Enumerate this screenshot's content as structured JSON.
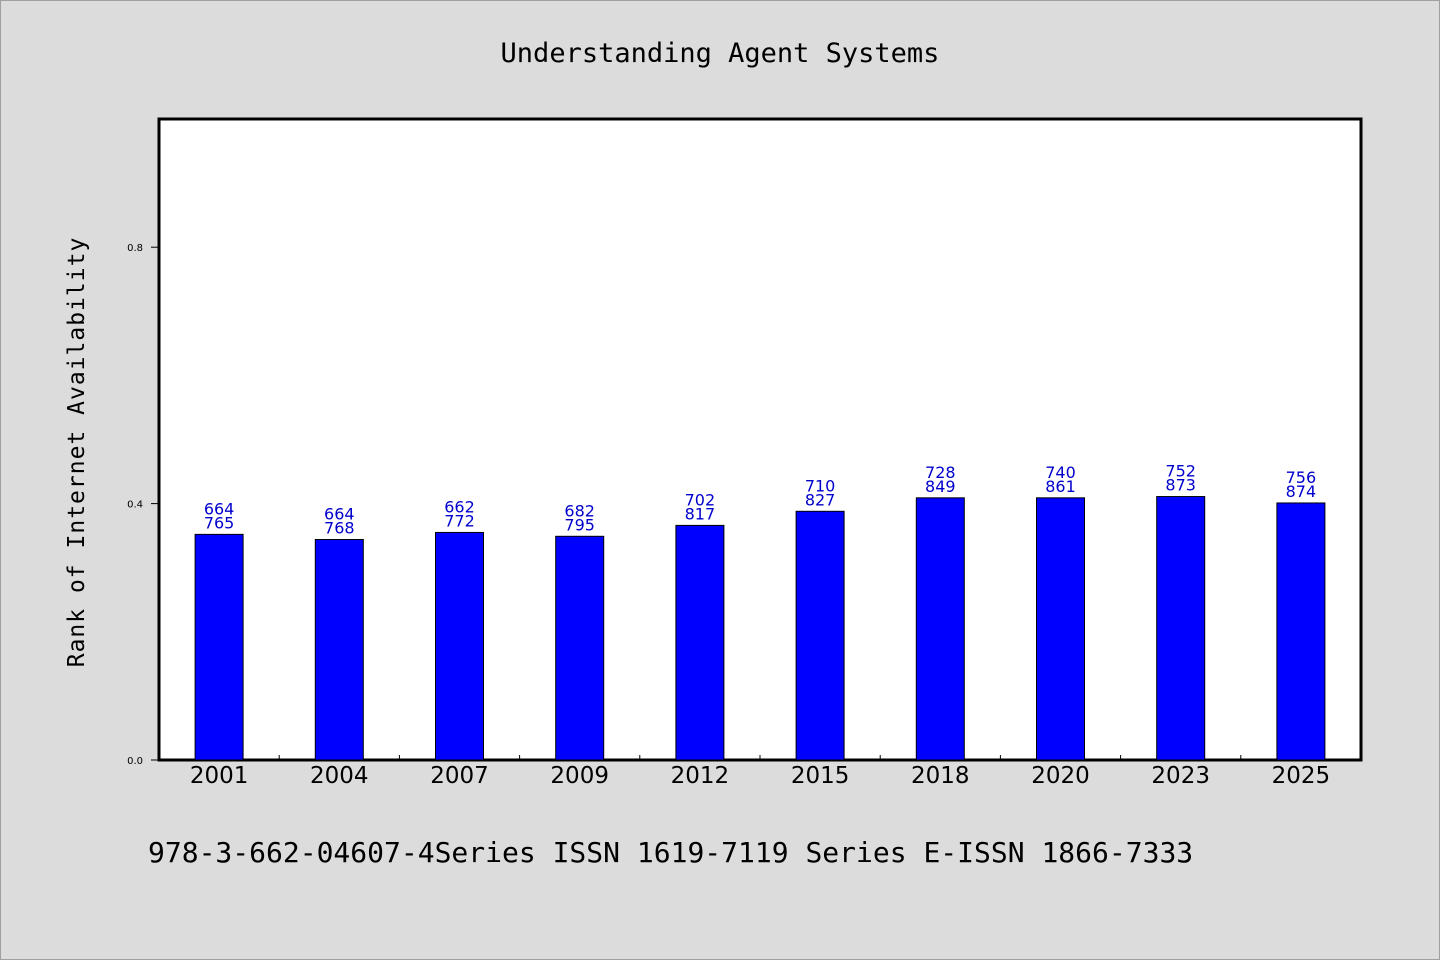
{
  "chart_data": {
    "type": "bar",
    "title": "Understanding Agent Systems",
    "xlabel": "",
    "ylabel": "Rank of Internet Availability",
    "categories": [
      "2001",
      "2004",
      "2007",
      "2009",
      "2012",
      "2015",
      "2018",
      "2020",
      "2023",
      "2025"
    ],
    "values": [
      0.352,
      0.344,
      0.355,
      0.349,
      0.366,
      0.388,
      0.409,
      0.409,
      0.411,
      0.401
    ],
    "data_labels_top": [
      "664",
      "664",
      "662",
      "682",
      "702",
      "710",
      "728",
      "740",
      "752",
      "756"
    ],
    "data_labels_bottom": [
      "765",
      "768",
      "772",
      "795",
      "817",
      "827",
      "849",
      "861",
      "873",
      "874"
    ],
    "yticks": [
      "0.0",
      "0.4",
      "0.8"
    ],
    "ylim": [
      0,
      1.0
    ],
    "grid": false,
    "bar_color": "#0000ff",
    "label_color": "#0000cc"
  },
  "footer": "978-3-662-04607-4Series ISSN 1619-7119 Series E-ISSN 1866-7333"
}
